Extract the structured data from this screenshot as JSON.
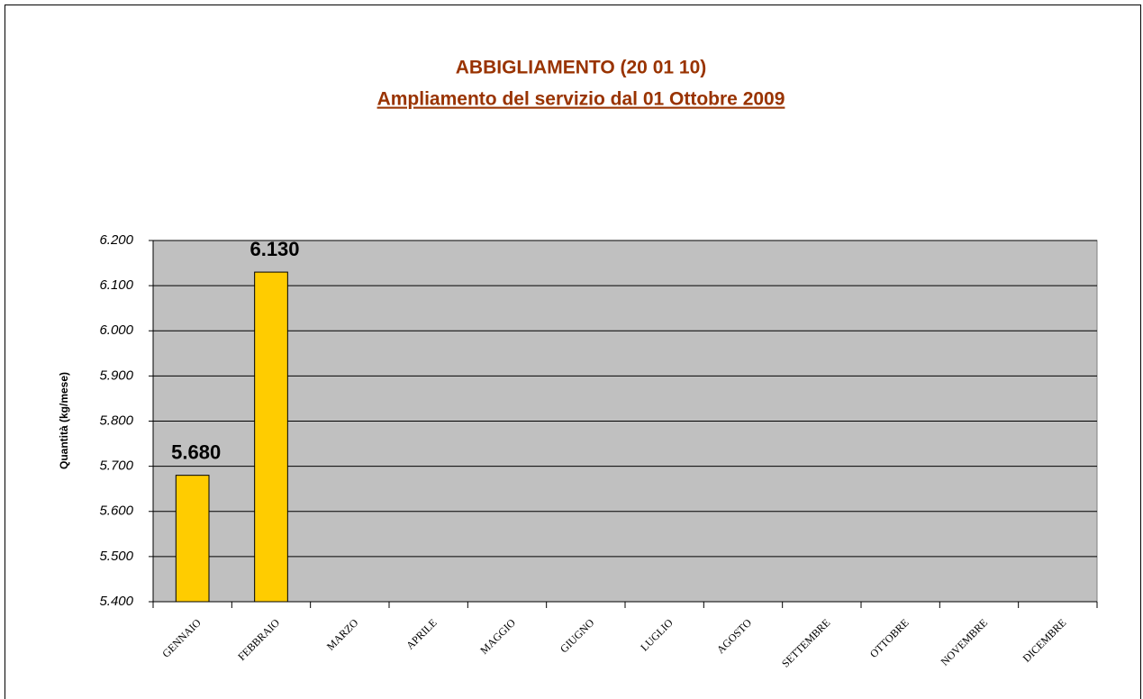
{
  "chart_data": {
    "type": "bar",
    "title": "ABBIGLIAMENTO (20 01 10)",
    "subtitle": "Ampliamento del servizio dal 01 Ottobre 2009",
    "y_label": "Quantità (kg/mese)",
    "categories": [
      "GENNAIO",
      "FEBBRAIO",
      "MARZO",
      "APRILE",
      "MAGGIO",
      "GIUGNO",
      "LUGLIO",
      "AGOSTO",
      "SETTEMBRE",
      "OTTOBRE",
      "NOVEMBRE",
      "DICEMBRE"
    ],
    "values": [
      5680,
      6130,
      null,
      null,
      null,
      null,
      null,
      null,
      null,
      null,
      null,
      null
    ],
    "value_labels": [
      "5.680",
      "6.130",
      null,
      null,
      null,
      null,
      null,
      null,
      null,
      null,
      null,
      null
    ],
    "color": "#ffcc00",
    "ylim": [
      5400,
      6200
    ],
    "yticks": [
      {
        "value": 5400,
        "label": "5.400"
      },
      {
        "value": 5500,
        "label": "5.500"
      },
      {
        "value": 5600,
        "label": "5.600"
      },
      {
        "value": 5700,
        "label": "5.700"
      },
      {
        "value": 5800,
        "label": "5.800"
      },
      {
        "value": 5900,
        "label": "5.900"
      },
      {
        "value": 6000,
        "label": "6.000"
      },
      {
        "value": 6100,
        "label": "6.100"
      },
      {
        "value": 6200,
        "label": "6.200"
      }
    ],
    "grid": true
  }
}
